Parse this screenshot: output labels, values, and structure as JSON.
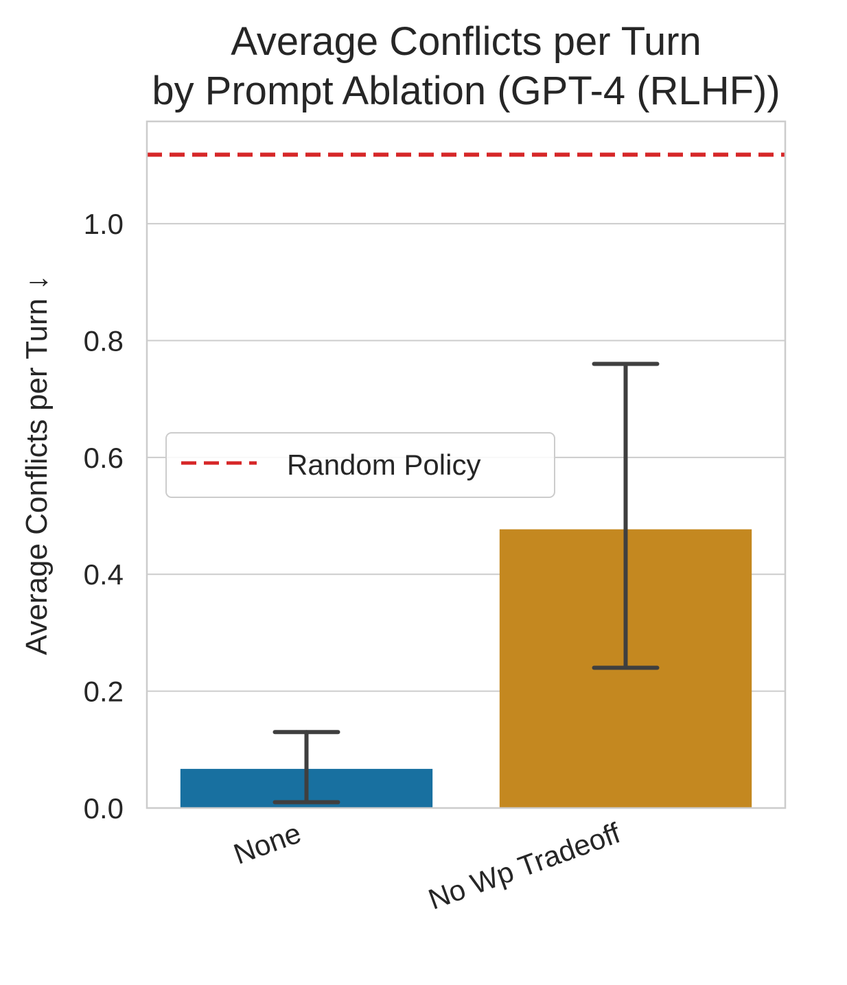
{
  "chart_data": {
    "type": "bar",
    "title_lines": [
      "Average Conflicts per Turn",
      "by Prompt Ablation (GPT-4 (RLHF))"
    ],
    "xlabel": "",
    "ylabel": "Average Conflicts per Turn ↓",
    "categories": [
      "None",
      "No Wp Tradeoff"
    ],
    "values": [
      0.067,
      0.477
    ],
    "error_low": [
      0.01,
      0.24
    ],
    "error_high": [
      0.13,
      0.76
    ],
    "bar_colors": [
      "#1870a0",
      "#c48820"
    ],
    "ylim": [
      0,
      1.175
    ],
    "yticks": [
      0.0,
      0.2,
      0.4,
      0.6,
      0.8,
      1.0
    ],
    "ytick_labels": [
      "0.0",
      "0.2",
      "0.4",
      "0.6",
      "0.8",
      "1.0"
    ],
    "grid": true,
    "reference_line": {
      "label": "Random Policy",
      "value": 1.118,
      "color": "#d62728",
      "style": "dashed"
    },
    "legend": {
      "placement": "center-left",
      "entries": [
        "Random Policy"
      ]
    }
  }
}
